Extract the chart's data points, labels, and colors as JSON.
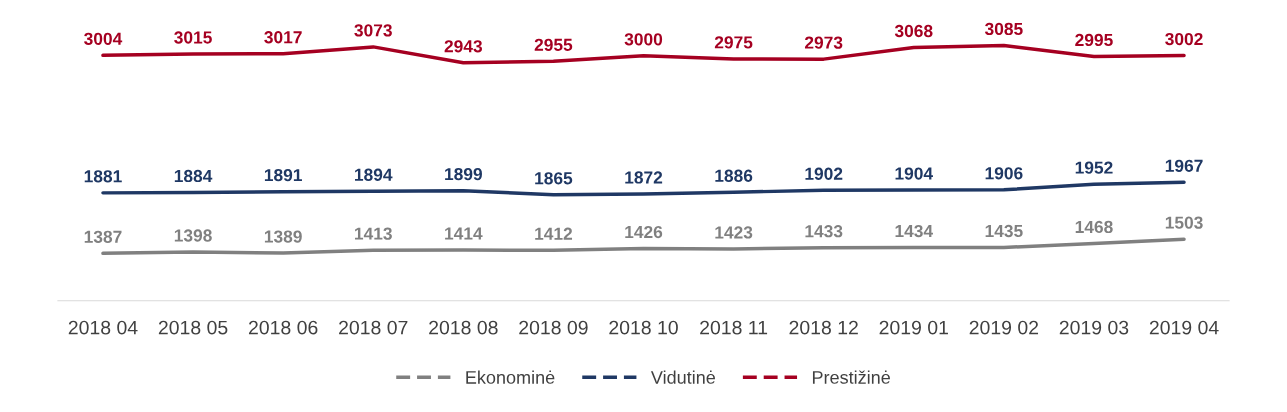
{
  "chart_data": {
    "type": "line",
    "categories": [
      "2018 04",
      "2018 05",
      "2018 06",
      "2018 07",
      "2018 08",
      "2018 09",
      "2018 10",
      "2018 11",
      "2018 12",
      "2019 01",
      "2019 02",
      "2019 03",
      "2019 04"
    ],
    "series": [
      {
        "name": "Ekonominė",
        "color": "#808080",
        "values": [
          1387,
          1398,
          1389,
          1413,
          1414,
          1412,
          1426,
          1423,
          1433,
          1434,
          1435,
          1468,
          1503
        ]
      },
      {
        "name": "Vidutinė",
        "color": "#1f3864",
        "values": [
          1881,
          1884,
          1891,
          1894,
          1899,
          1865,
          1872,
          1886,
          1902,
          1904,
          1906,
          1952,
          1967
        ]
      },
      {
        "name": "Prestižinė",
        "color": "#a50021",
        "values": [
          3004,
          3015,
          3017,
          3073,
          2943,
          2955,
          3000,
          2975,
          2973,
          3068,
          3085,
          2995,
          3002
        ]
      }
    ],
    "tick_labels": "x",
    "data_labels": true,
    "grid": false,
    "legend": "bottom",
    "line_style": "solid"
  }
}
